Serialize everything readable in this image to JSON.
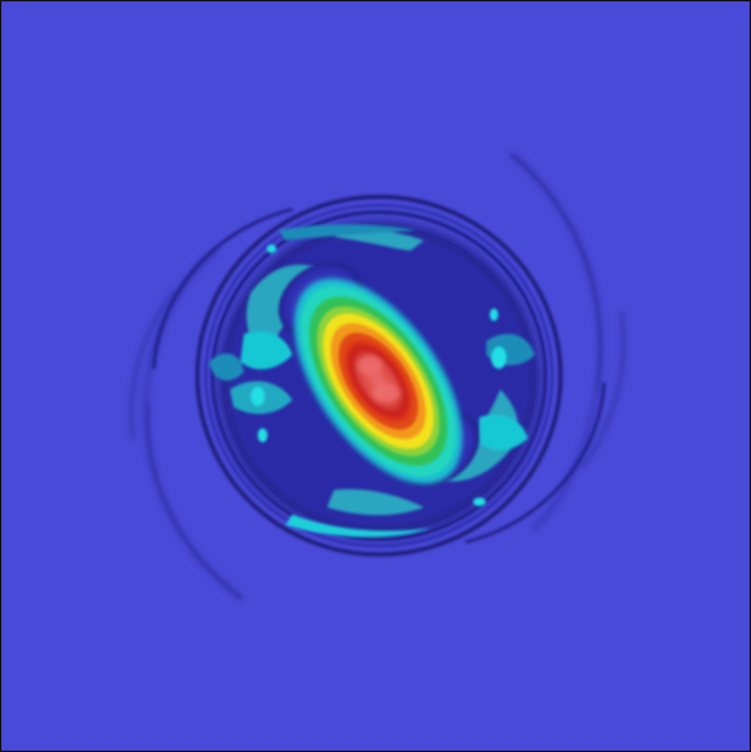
{
  "figure": {
    "kind": "pseudocolor simulation field (jet-like colormap), rotating vortex with spiral shock arms",
    "colors": {
      "background": "#4a4ad8",
      "deep_blue": "#23238a",
      "dark_band": "#1c1c78",
      "pale_blue": "#3c3cc8",
      "cyan": "#18d4dc",
      "teal": "#2aa6c0",
      "green": "#34c15a",
      "yellow": "#f2e21a",
      "orange": "#f28a1a",
      "red": "#d62a20",
      "core": "#e05a5a",
      "border": "#111111"
    }
  }
}
